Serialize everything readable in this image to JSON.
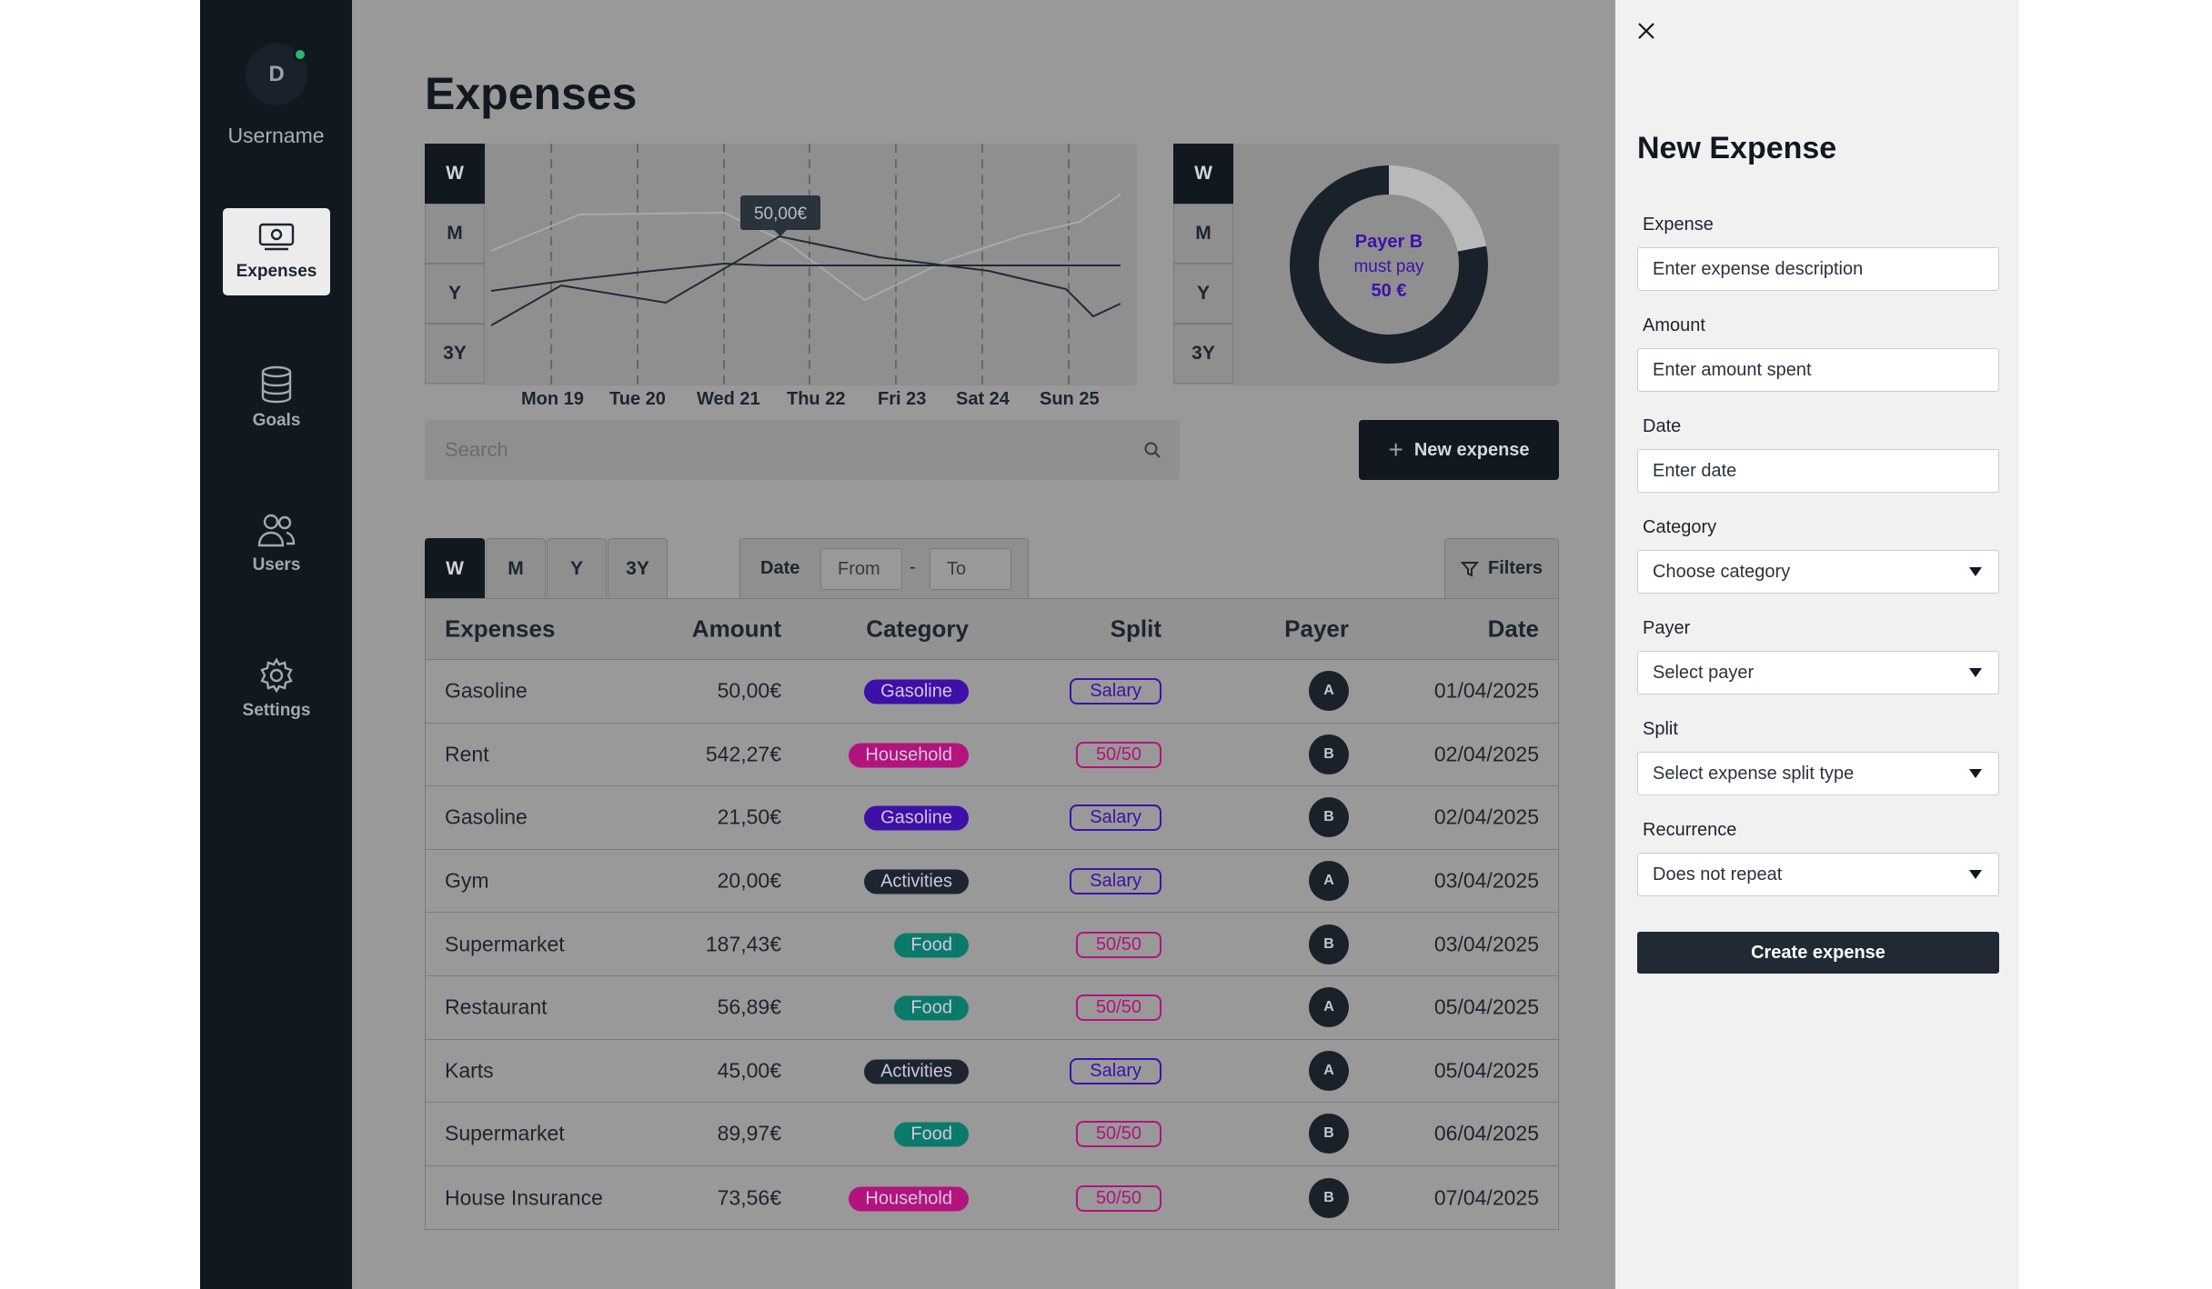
{
  "user": {
    "initial": "D",
    "name": "Username"
  },
  "nav": [
    {
      "label": "Expenses",
      "icon": "money-icon",
      "active": true
    },
    {
      "label": "Goals",
      "icon": "database-icon",
      "active": false
    },
    {
      "label": "Users",
      "icon": "users-icon",
      "active": false
    },
    {
      "label": "Settings",
      "icon": "gear-icon",
      "active": false
    }
  ],
  "page": {
    "title": "Expenses"
  },
  "range_options": [
    "W",
    "M",
    "Y",
    "3Y"
  ],
  "chart_data": {
    "type": "line",
    "categories": [
      "Mon 19",
      "Tue 20",
      "Wed 21",
      "Thu 22",
      "Fri 23",
      "Sat 24",
      "Sun 25"
    ],
    "tooltip": "50,00€"
  },
  "donut": {
    "line1": "Payer B",
    "line2": "must pay",
    "line3": "50 €",
    "fraction": 0.78
  },
  "search": {
    "placeholder": "Search"
  },
  "new_expense_label": "New expense",
  "filters": {
    "date_label": "Date",
    "from_placeholder": "From",
    "dash": "-",
    "to_placeholder": "To",
    "filters_label": "Filters"
  },
  "table": {
    "headers": {
      "expenses": "Expenses",
      "amount": "Amount",
      "category": "Category",
      "split": "Split",
      "payer": "Payer",
      "date": "Date"
    },
    "rows": [
      {
        "name": "Gasoline",
        "amount": "50,00€",
        "category": "Gasoline",
        "split": "Salary",
        "payer": "A",
        "date": "01/04/2025"
      },
      {
        "name": "Rent",
        "amount": "542,27€",
        "category": "Household",
        "split": "50/50",
        "payer": "B",
        "date": "02/04/2025"
      },
      {
        "name": "Gasoline",
        "amount": "21,50€",
        "category": "Gasoline",
        "split": "Salary",
        "payer": "B",
        "date": "02/04/2025"
      },
      {
        "name": "Gym",
        "amount": "20,00€",
        "category": "Activities",
        "split": "Salary",
        "payer": "A",
        "date": "03/04/2025"
      },
      {
        "name": "Supermarket",
        "amount": "187,43€",
        "category": "Food",
        "split": "50/50",
        "payer": "B",
        "date": "03/04/2025"
      },
      {
        "name": "Restaurant",
        "amount": "56,89€",
        "category": "Food",
        "split": "50/50",
        "payer": "A",
        "date": "05/04/2025"
      },
      {
        "name": "Karts",
        "amount": "45,00€",
        "category": "Activities",
        "split": "Salary",
        "payer": "A",
        "date": "05/04/2025"
      },
      {
        "name": "Supermarket",
        "amount": "89,97€",
        "category": "Food",
        "split": "50/50",
        "payer": "B",
        "date": "06/04/2025"
      },
      {
        "name": "House Insurance",
        "amount": "73,56€",
        "category": "Household",
        "split": "50/50",
        "payer": "B",
        "date": "07/04/2025"
      }
    ]
  },
  "category_colors": {
    "Gasoline": "#3d11a8",
    "Household": "#b3137c",
    "Activities": "#1c2530",
    "Food": "#0c7a6a"
  },
  "split_colors": {
    "Salary": "#3d11a8",
    "50/50": "#b3137c"
  },
  "panel": {
    "title": "New Expense",
    "fields": {
      "expense": {
        "label": "Expense",
        "placeholder": "Enter expense description"
      },
      "amount": {
        "label": "Amount",
        "placeholder": "Enter amount spent"
      },
      "date": {
        "label": "Date",
        "placeholder": "Enter date"
      },
      "category": {
        "label": "Category",
        "value": "Choose category"
      },
      "payer": {
        "label": "Payer",
        "value": "Select payer"
      },
      "split": {
        "label": "Split",
        "value": "Select expense split type"
      },
      "recurrence": {
        "label": "Recurrence",
        "value": "Does not repeat"
      }
    },
    "submit_label": "Create expense"
  }
}
